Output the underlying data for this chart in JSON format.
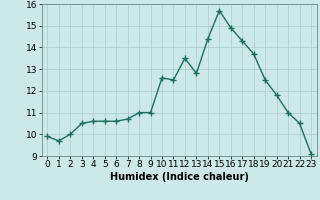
{
  "title": "",
  "xlabel": "Humidex (Indice chaleur)",
  "ylabel": "",
  "x": [
    0,
    1,
    2,
    3,
    4,
    5,
    6,
    7,
    8,
    9,
    10,
    11,
    12,
    13,
    14,
    15,
    16,
    17,
    18,
    19,
    20,
    21,
    22,
    23
  ],
  "y": [
    9.9,
    9.7,
    10.0,
    10.5,
    10.6,
    10.6,
    10.6,
    10.7,
    11.0,
    11.0,
    12.6,
    12.5,
    13.5,
    12.8,
    14.4,
    15.7,
    14.9,
    14.3,
    13.7,
    12.5,
    11.8,
    11.0,
    10.5,
    9.1
  ],
  "line_color": "#1a7060",
  "marker": "+",
  "marker_size": 4,
  "marker_linewidth": 1.0,
  "background_color": "#cce8e8",
  "grid_color": "#aacccc",
  "ylim": [
    9,
    16
  ],
  "xlim": [
    -0.5,
    23.5
  ],
  "yticks": [
    9,
    10,
    11,
    12,
    13,
    14,
    15,
    16
  ],
  "xticks": [
    0,
    1,
    2,
    3,
    4,
    5,
    6,
    7,
    8,
    9,
    10,
    11,
    12,
    13,
    14,
    15,
    16,
    17,
    18,
    19,
    20,
    21,
    22,
    23
  ],
  "xlabel_fontsize": 7,
  "tick_fontsize": 6.5
}
